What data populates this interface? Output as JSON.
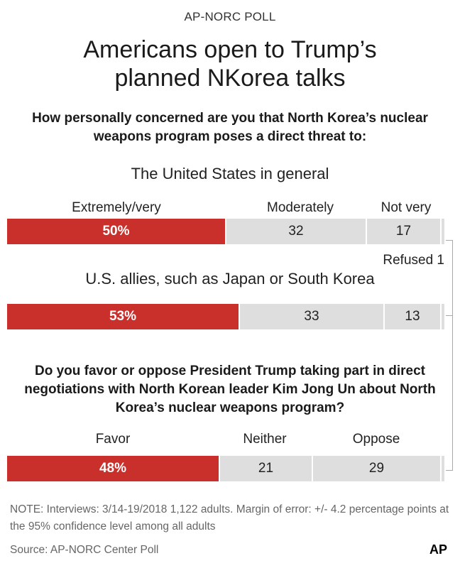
{
  "header": {
    "kicker": "AP-NORC POLL",
    "title_line1": "Americans open to Trump’s",
    "title_line2": "planned NKorea talks"
  },
  "question1": {
    "line1": "How personally concerned are you that North Korea’s nuclear",
    "line2": "weapons program poses a direct threat to:"
  },
  "question2": {
    "line1": "Do you favor or oppose President Trump taking part in direct",
    "line2": "negotiations with North Korean leader Kim Jong Un about North",
    "line3": "Korea’s nuclear weapons program?"
  },
  "refused_label": "Refused 1",
  "chart_data": [
    {
      "type": "bar",
      "orientation": "horizontal-stacked",
      "title": "The United States in general",
      "categories": [
        "Extremely/very",
        "Moderately",
        "Not very",
        "Refused"
      ],
      "values": [
        50,
        32,
        17,
        1
      ],
      "labels": [
        "50%",
        "32",
        "17",
        ""
      ],
      "colors": [
        "#c9302c",
        "#dedede",
        "#dedede",
        "#dedede"
      ]
    },
    {
      "type": "bar",
      "orientation": "horizontal-stacked",
      "title": "U.S. allies, such as Japan or South Korea",
      "categories": [
        "Extremely/very",
        "Moderately",
        "Not very",
        "Refused"
      ],
      "values": [
        53,
        33,
        13,
        1
      ],
      "labels": [
        "53%",
        "33",
        "13",
        ""
      ],
      "colors": [
        "#c9302c",
        "#dedede",
        "#dedede",
        "#dedede"
      ]
    },
    {
      "type": "bar",
      "orientation": "horizontal-stacked",
      "title": "",
      "categories": [
        "Favor",
        "Neither",
        "Oppose",
        "Refused"
      ],
      "values": [
        48,
        21,
        29,
        1
      ],
      "labels": [
        "48%",
        "21",
        "29",
        ""
      ],
      "colors": [
        "#c9302c",
        "#dedede",
        "#dedede",
        "#dedede"
      ]
    }
  ],
  "footer": {
    "note_line1": "NOTE: Interviews: 3/14-19/2018 1,122 adults. Margin of error: +/- 4.2 percentage points at",
    "note_line2": "the 95% confidence level among all adults",
    "source": "Source: AP-NORC Center Poll",
    "logo": "AP"
  }
}
